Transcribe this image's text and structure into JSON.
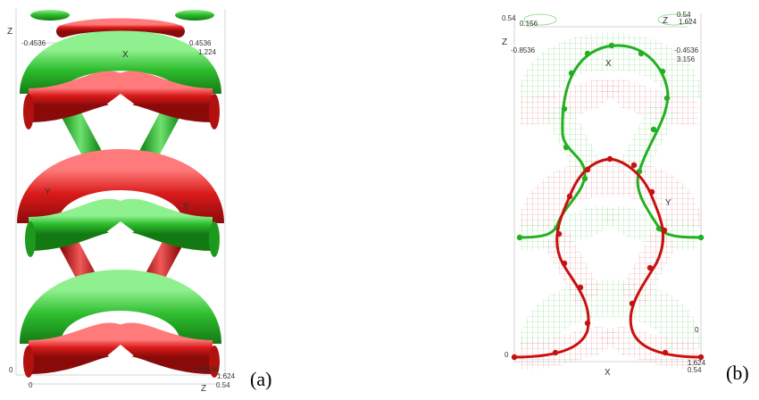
{
  "figure": {
    "panel_a": {
      "caption": "(a)",
      "axis_labels": {
        "z_left": "Z",
        "x_top": "X",
        "y_mid_left": "Y",
        "y_mid_right": "Y",
        "x_bottom": "0",
        "z_bottom": "Z",
        "origin": "0"
      },
      "tick_labels": {
        "top_left": "-0.4536",
        "top_right": "0.4536",
        "top_right_2": "1.224",
        "bottom_right_1": "0.54",
        "bottom_right_2": "1.624",
        "bottom_right_3": "-0.4536"
      },
      "colors": {
        "green_tube": "#28b428",
        "red_tube": "#d81818"
      }
    },
    "panel_b": {
      "caption": "(b)",
      "axis_labels": {
        "z_left": "Z",
        "z_right": "Z",
        "x_top": "X",
        "x_bottom": "X",
        "y_mid": "Y",
        "origin": "0"
      },
      "tick_labels": {
        "top_left_1": "0.54",
        "top_left_2": "0.156",
        "top_left_3": "-0.8536",
        "top_right_1": "0.54",
        "top_right_2": "1.624",
        "top_right_3": "-0.4536",
        "top_right_4": "3.156",
        "bottom_left": "0",
        "bottom_right_1": "0.54",
        "bottom_right_2": "1.624"
      },
      "colors": {
        "green_curve": "#22b022",
        "red_curve": "#c81010",
        "green_mesh": "#7fd47f",
        "red_mesh": "#e58a8a"
      }
    }
  }
}
